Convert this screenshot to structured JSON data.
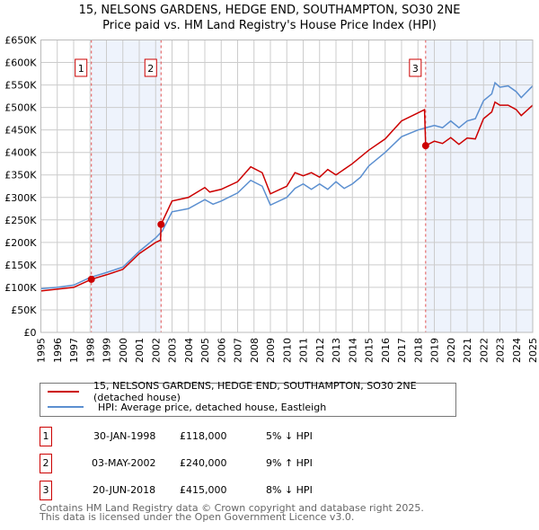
{
  "chart_data": {
    "type": "line",
    "title": "15, NELSONS GARDENS, HEDGE END, SOUTHAMPTON, SO30 2NE",
    "subtitle": "Price paid vs. HM Land Registry's House Price Index (HPI)",
    "xlim": [
      1995,
      2025
    ],
    "ylim": [
      0,
      650000
    ],
    "x_ticks": [
      "1995",
      "1996",
      "1997",
      "1998",
      "1999",
      "2000",
      "2001",
      "2002",
      "2003",
      "2004",
      "2005",
      "2006",
      "2007",
      "2008",
      "2009",
      "2010",
      "2011",
      "2012",
      "2013",
      "2014",
      "2015",
      "2016",
      "2017",
      "2018",
      "2019",
      "2020",
      "2021",
      "2022",
      "2023",
      "2024",
      "2025"
    ],
    "y_ticks": [
      "£0",
      "£50K",
      "£100K",
      "£150K",
      "£200K",
      "£250K",
      "£300K",
      "£350K",
      "£400K",
      "£450K",
      "£500K",
      "£550K",
      "£600K",
      "£650K"
    ],
    "grid": true,
    "series": [
      {
        "name": "15, NELSONS GARDENS, HEDGE END, SOUTHAMPTON, SO30 2NE (detached house)",
        "color": "#cc0000",
        "x": [
          1995,
          1996,
          1997,
          1998.08,
          1999,
          2000,
          2001,
          2002,
          2002.3,
          2002.33,
          2003,
          2004,
          2005,
          2005.3,
          2006,
          2007,
          2007.8,
          2008.5,
          2009,
          2010,
          2010.5,
          2011,
          2011.5,
          2012,
          2012.5,
          2013,
          2014,
          2015,
          2016,
          2017,
          2018.4,
          2018.47,
          2019,
          2019.5,
          2020,
          2020.5,
          2021,
          2021.5,
          2022,
          2022.5,
          2022.7,
          2023,
          2023.5,
          2024,
          2024.3,
          2025
        ],
        "y": [
          92000,
          96000,
          100000,
          118000,
          128000,
          140000,
          175000,
          200000,
          205000,
          240000,
          292000,
          300000,
          322000,
          312000,
          318000,
          335000,
          368000,
          355000,
          308000,
          325000,
          355000,
          348000,
          355000,
          345000,
          362000,
          350000,
          375000,
          405000,
          430000,
          470000,
          495000,
          415000,
          425000,
          420000,
          433000,
          418000,
          432000,
          430000,
          475000,
          490000,
          512000,
          505000,
          505000,
          495000,
          482000,
          505000
        ]
      },
      {
        "name": "HPI: Average price, detached house, Eastleigh",
        "color": "#5b8fd0",
        "x": [
          1995,
          1996,
          1997,
          1998,
          1999,
          2000,
          2001,
          2002,
          2002.4,
          2003,
          2004,
          2005,
          2005.5,
          2006,
          2007,
          2007.8,
          2008.5,
          2009,
          2010,
          2010.5,
          2011,
          2011.5,
          2012,
          2012.5,
          2013,
          2013.5,
          2014,
          2014.5,
          2015,
          2016,
          2017,
          2018,
          2018.5,
          2019,
          2019.5,
          2020,
          2020.5,
          2021,
          2021.5,
          2022,
          2022.5,
          2022.7,
          2023,
          2023.5,
          2024,
          2024.3,
          2025
        ],
        "y": [
          97000,
          100000,
          105000,
          122000,
          133000,
          145000,
          180000,
          210000,
          225000,
          268000,
          275000,
          295000,
          285000,
          292000,
          310000,
          338000,
          325000,
          283000,
          300000,
          320000,
          330000,
          318000,
          330000,
          318000,
          335000,
          320000,
          330000,
          345000,
          370000,
          400000,
          435000,
          450000,
          455000,
          460000,
          455000,
          470000,
          455000,
          470000,
          475000,
          515000,
          530000,
          555000,
          545000,
          548000,
          535000,
          522000,
          548000
        ]
      }
    ],
    "sales": [
      {
        "label": "1",
        "x": 2002.33,
        "x_sale": 1998.08,
        "y": 118000
      },
      {
        "label": "2",
        "x_sale": 2002.33,
        "y": 240000
      },
      {
        "label": "3",
        "x_sale": 2018.47,
        "y": 415000
      }
    ],
    "shaded_ranges": [
      [
        1998.08,
        2002.33
      ],
      [
        2018.47,
        2025
      ]
    ],
    "legend_position": "below"
  },
  "legend": {
    "red": "15, NELSONS GARDENS, HEDGE END, SOUTHAMPTON, SO30 2NE (detached house)",
    "blue": "HPI: Average price, detached house, Eastleigh"
  },
  "table": [
    {
      "n": "1",
      "date": "30-JAN-1998",
      "price": "£118,000",
      "hpi": "5% ↓ HPI"
    },
    {
      "n": "2",
      "date": "03-MAY-2002",
      "price": "£240,000",
      "hpi": "9% ↑ HPI"
    },
    {
      "n": "3",
      "date": "20-JUN-2018",
      "price": "£415,000",
      "hpi": "8% ↓ HPI"
    }
  ],
  "footer": {
    "line1": "Contains HM Land Registry data © Crown copyright and database right 2025.",
    "line2": "This data is licensed under the Open Government Licence v3.0."
  }
}
